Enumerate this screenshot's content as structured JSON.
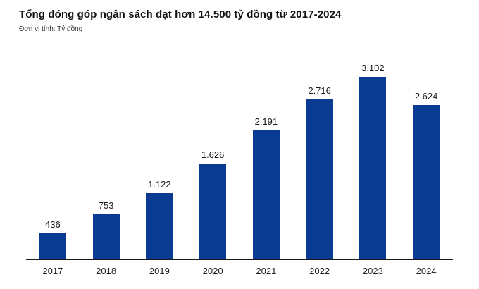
{
  "chart_data": {
    "type": "bar",
    "title": "Tổng đóng góp ngân sách đạt hơn 14.500 tỷ đồng từ 2017-2024",
    "subtitle": "Đơn vị tính: Tỷ đồng",
    "unit": "Tỷ đồng",
    "categories": [
      "2017",
      "2018",
      "2019",
      "2020",
      "2021",
      "2022",
      "2023",
      "2024"
    ],
    "values": [
      436,
      753,
      1122,
      1626,
      2191,
      2716,
      3102,
      2624
    ],
    "value_labels": [
      "436",
      "753",
      "1.122",
      "1.626",
      "2.191",
      "2.716",
      "3.102",
      "2.624"
    ],
    "xlabel": "",
    "ylabel": "Tỷ đồng",
    "ylim": [
      0,
      3300
    ],
    "grid": false,
    "legend": "none",
    "colors": {
      "bar": "#0a3a91",
      "axis": "#1a1a1a",
      "text": "#1a1a1a",
      "background": "#ffffff"
    }
  }
}
